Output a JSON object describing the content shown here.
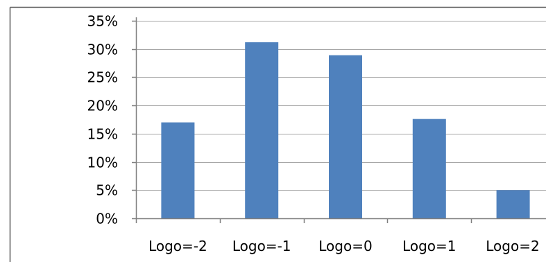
{
  "chart_data": {
    "type": "bar",
    "categories": [
      "Logo=-2",
      "Logo=-1",
      "Logo=0",
      "Logo=1",
      "Logo=2"
    ],
    "values": [
      17.0,
      31.2,
      28.9,
      17.6,
      5.0
    ],
    "ylim": [
      0,
      35
    ],
    "yticks": [
      0,
      5,
      10,
      15,
      20,
      25,
      30,
      35
    ],
    "ytick_labels": [
      "0%",
      "5%",
      "10%",
      "15%",
      "20%",
      "25%",
      "30%",
      "35%"
    ],
    "grid": true,
    "legend": "none",
    "colors": {
      "bar": "#4f81bd",
      "gridline": "#a6a6a6",
      "axis": "#7f7f7f",
      "frame": "#595959"
    }
  }
}
